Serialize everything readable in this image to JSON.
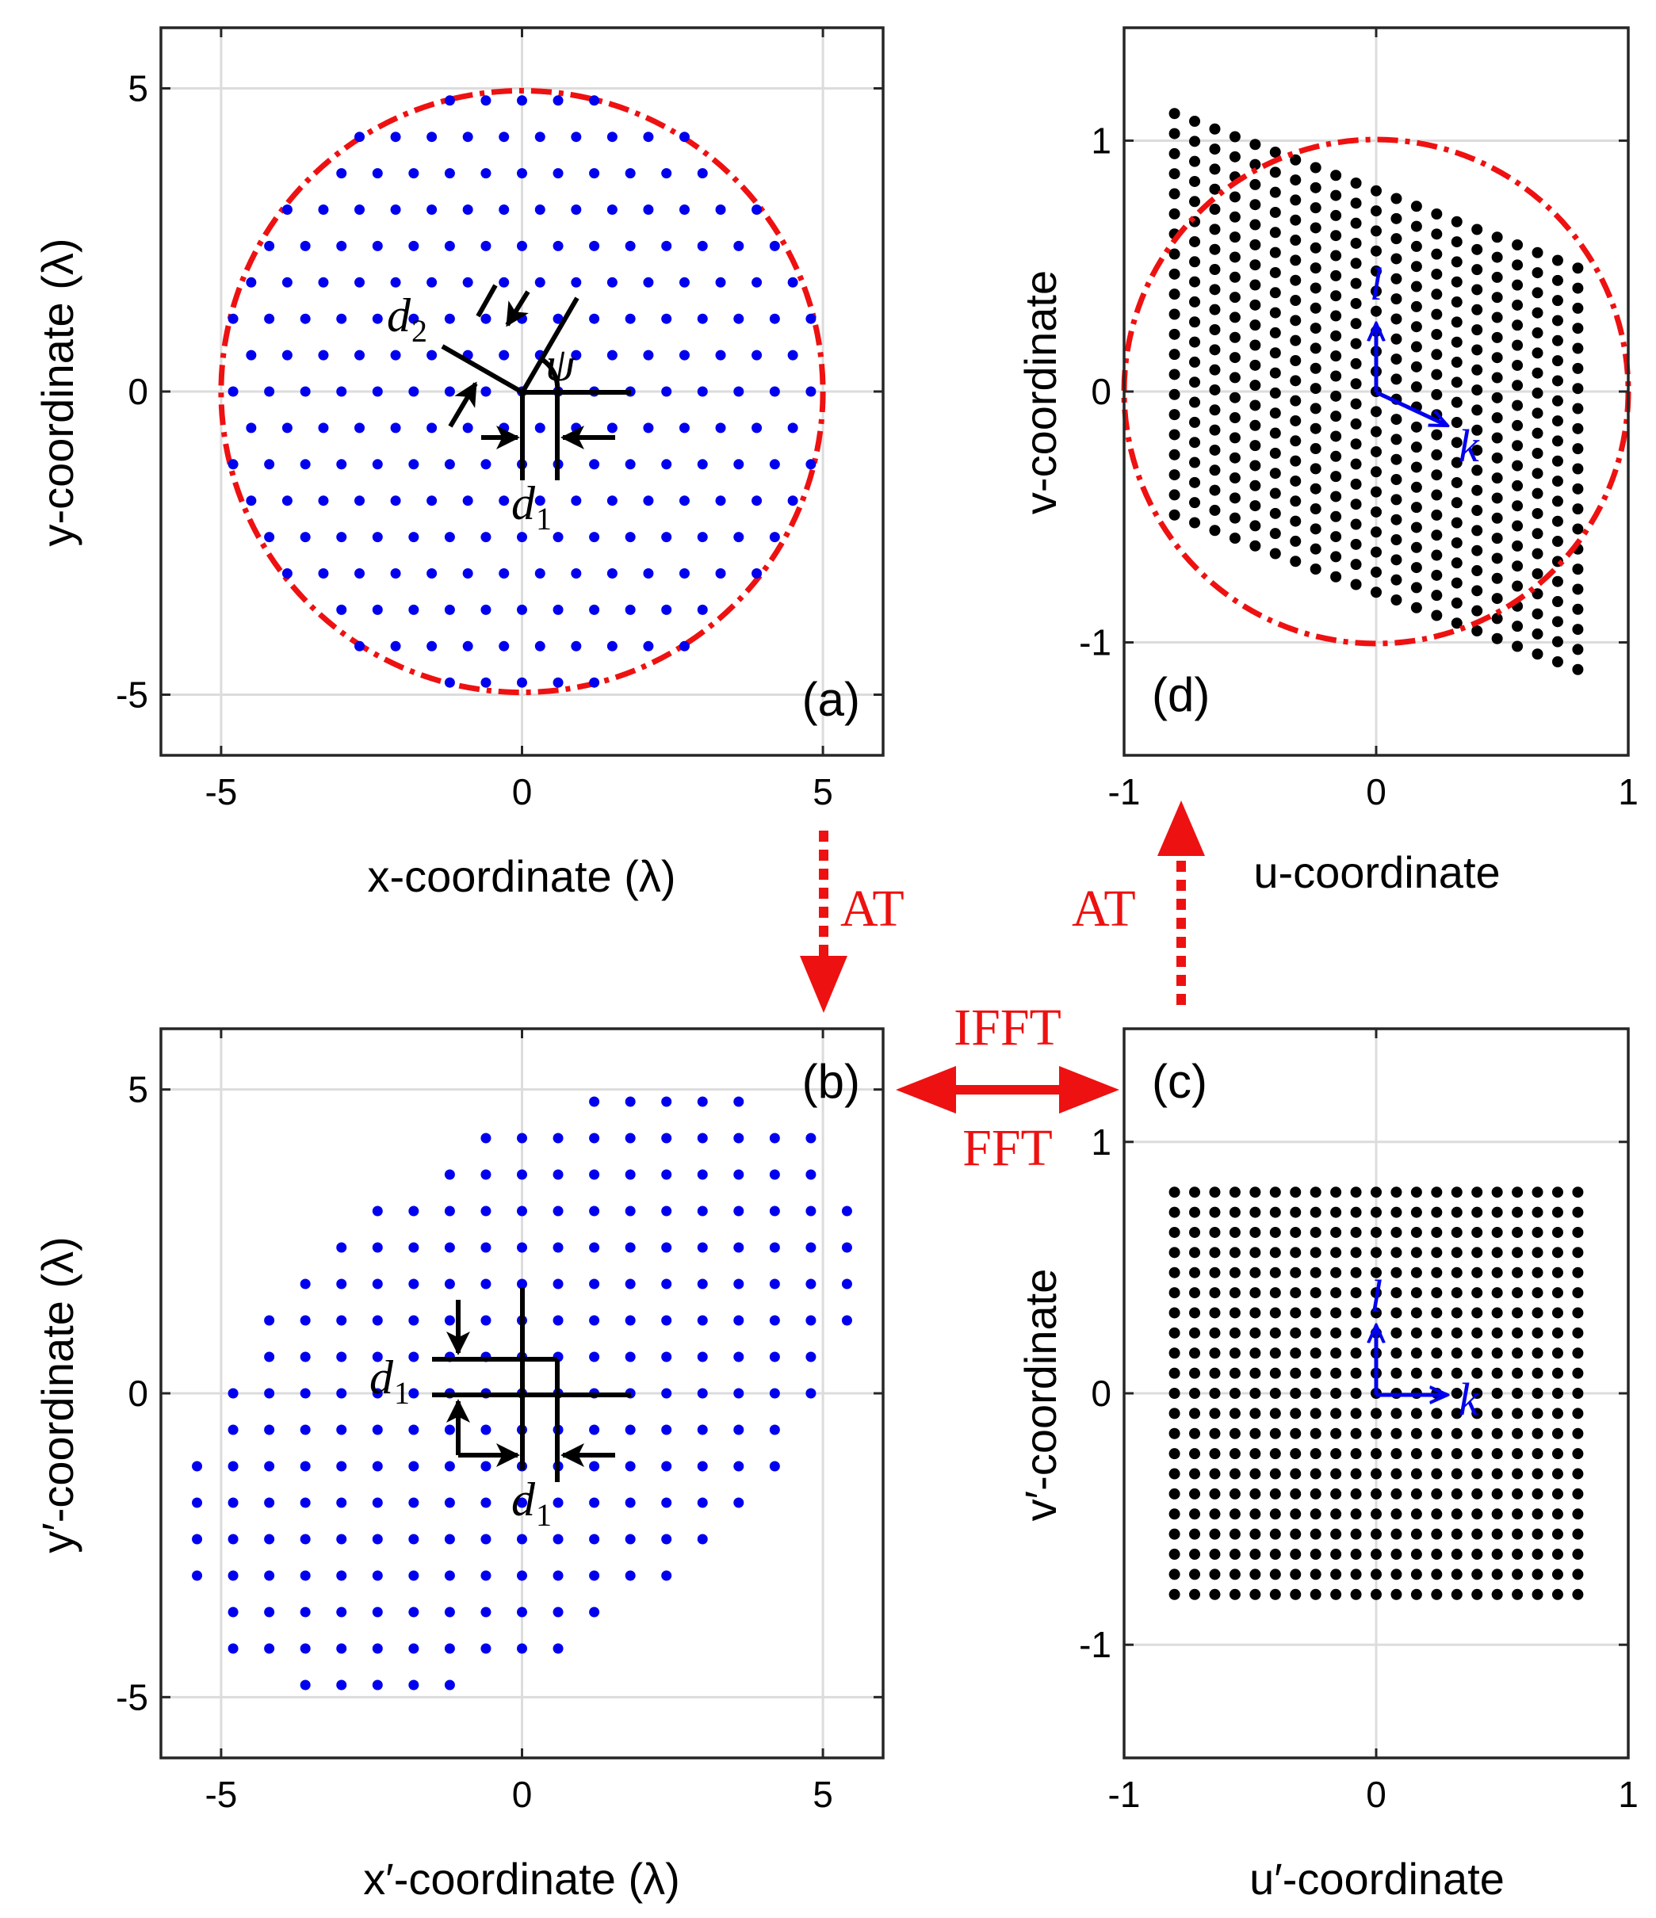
{
  "chart_data": [
    {
      "type": "scatter",
      "panel": "(a)",
      "title": "",
      "xlabel": "x-coordinate (λ)",
      "ylabel": "y-coordinate (λ)",
      "xlim": [
        -6,
        6
      ],
      "ylim": [
        -6,
        6
      ],
      "xticks": [
        -5,
        0,
        5
      ],
      "yticks": [
        -5,
        0,
        5
      ],
      "xtick_labels": [
        "-5",
        "0",
        "5"
      ],
      "ytick_labels": [
        "-5",
        "0",
        "5"
      ],
      "grid": true,
      "lattice": {
        "spacing_x": 0.6,
        "spacing_y": 0.6,
        "row_shift": 0.3,
        "aperture_radius": 5
      },
      "circle": {
        "cx": 0,
        "cy": 0,
        "r": 5,
        "color": "#ee1111",
        "style": "dash-dot"
      },
      "point_color": "#0000ee",
      "annotations": {
        "d1": "d",
        "d1_sub": "1",
        "d2": "d",
        "d2_sub": "2",
        "psi": "ψ"
      }
    },
    {
      "type": "scatter",
      "panel": "(b)",
      "title": "",
      "xlabel": "x′-coordinate (λ)",
      "ylabel": "y′-coordinate (λ)",
      "xlim": [
        -6,
        6
      ],
      "ylim": [
        -6,
        6
      ],
      "xticks": [
        -5,
        0,
        5
      ],
      "yticks": [
        -5,
        0,
        5
      ],
      "xtick_labels": [
        "-5",
        "0",
        "5"
      ],
      "ytick_labels": [
        "-5",
        "0",
        "5"
      ],
      "grid": true,
      "lattice": {
        "spacing": 0.6,
        "shear": 0.5
      },
      "point_color": "#0000ee",
      "annotations": {
        "d1a": "d",
        "d1a_sub": "1",
        "d1b": "d",
        "d1b_sub": "1"
      }
    },
    {
      "type": "scatter",
      "panel": "(c)",
      "title": "",
      "xlabel": "u′-coordinate",
      "ylabel": "v′-coordinate",
      "xlim": [
        -1,
        1
      ],
      "ylim": [
        -1.45,
        1.45
      ],
      "xticks": [
        -1,
        0,
        1
      ],
      "yticks": [
        -1,
        0,
        1
      ],
      "xtick_labels": [
        "-1",
        "0",
        "1"
      ],
      "ytick_labels": [
        "-1",
        "0",
        "1"
      ],
      "grid": true,
      "lattice": {
        "n": 21,
        "min": -0.8,
        "max": 0.8
      },
      "point_color": "#000000",
      "vectors": {
        "l": "l",
        "k": "k",
        "color": "#0000ee"
      }
    },
    {
      "type": "scatter",
      "panel": "(d)",
      "title": "",
      "xlabel": "u-coordinate",
      "ylabel": "v-coordinate",
      "xlim": [
        -1,
        1
      ],
      "ylim": [
        -1.45,
        1.45
      ],
      "xticks": [
        -1,
        0,
        1
      ],
      "yticks": [
        -1,
        0,
        1
      ],
      "xtick_labels": [
        "-1",
        "0",
        "1"
      ],
      "ytick_labels": [
        "-1",
        "0",
        "1"
      ],
      "grid": true,
      "lattice": {
        "n": 21,
        "min": -0.8,
        "max": 0.8,
        "shear": -0.385
      },
      "circle": {
        "cx": 0,
        "cy": 0,
        "r": 1,
        "color": "#ee1111",
        "style": "dash-dot"
      },
      "point_color": "#000000",
      "vectors": {
        "l": "l",
        "k": "k",
        "color": "#0000ee"
      }
    }
  ],
  "transforms": {
    "at_down": "AT",
    "at_up": "AT",
    "ifft": "IFFT",
    "fft": "FFT",
    "color": "#ee1111"
  }
}
